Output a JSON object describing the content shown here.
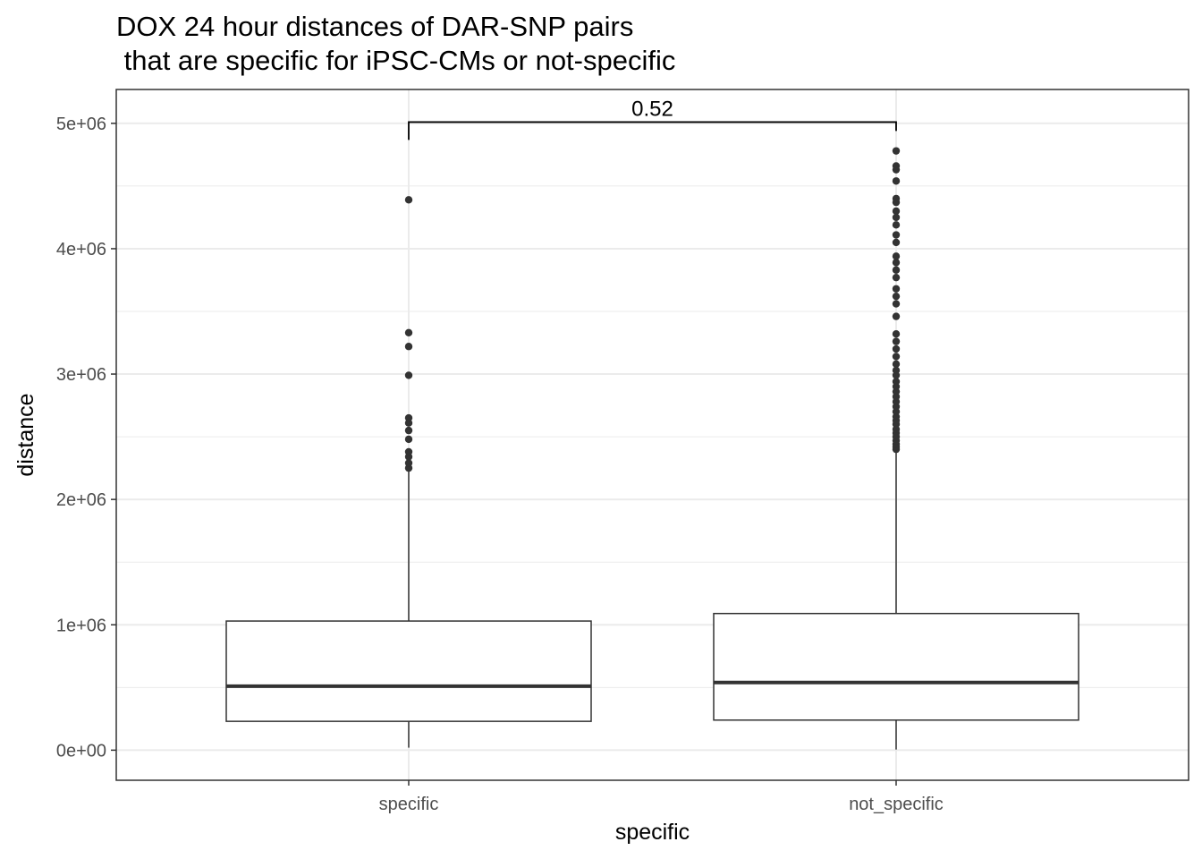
{
  "chart_data": {
    "type": "boxplot",
    "title_lines": [
      "DOX 24 hour distances of DAR-SNP pairs",
      " that are specific for iPSC-CMs or not-specific"
    ],
    "xlabel": "specific",
    "ylabel": "distance",
    "categories": [
      "specific",
      "not_specific"
    ],
    "ylim": [
      -240000,
      5270000
    ],
    "y_ticks": [
      0,
      1000000,
      2000000,
      3000000,
      4000000,
      5000000
    ],
    "y_tick_labels": [
      "0e+00",
      "1e+06",
      "2e+06",
      "3e+06",
      "4e+06",
      "5e+06"
    ],
    "grid": true,
    "boxes": [
      {
        "category": "specific",
        "whisker_low": 20000,
        "q1": 230000,
        "median": 510000,
        "q3": 1030000,
        "whisker_high": 2230000,
        "outliers": [
          2250000,
          2290000,
          2340000,
          2380000,
          2480000,
          2550000,
          2610000,
          2650000,
          2990000,
          3220000,
          3330000,
          4390000
        ]
      },
      {
        "category": "not_specific",
        "whisker_low": 5000,
        "q1": 240000,
        "median": 540000,
        "q3": 1090000,
        "whisker_high": 2380000,
        "outliers": [
          2400000,
          2420000,
          2440000,
          2470000,
          2500000,
          2530000,
          2560000,
          2600000,
          2630000,
          2660000,
          2700000,
          2740000,
          2780000,
          2820000,
          2860000,
          2900000,
          2940000,
          2990000,
          3030000,
          3080000,
          3140000,
          3200000,
          3260000,
          3320000,
          3460000,
          3560000,
          3620000,
          3680000,
          3770000,
          3830000,
          3890000,
          3940000,
          4050000,
          4110000,
          4190000,
          4250000,
          4300000,
          4370000,
          4400000,
          4540000,
          4630000,
          4660000,
          4780000
        ]
      }
    ],
    "bracket": {
      "from": "specific",
      "to": "not_specific",
      "y": 5010000,
      "label": "0.52"
    }
  }
}
